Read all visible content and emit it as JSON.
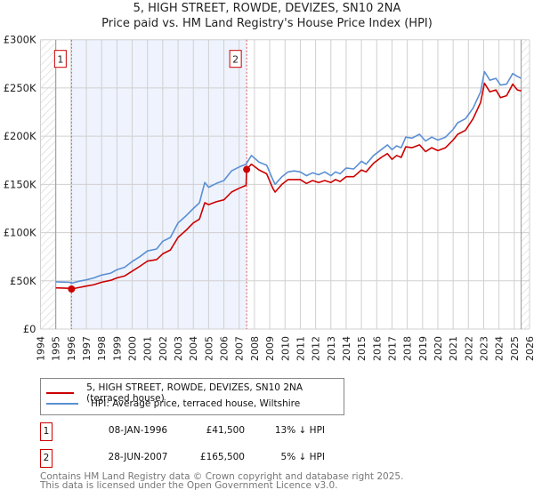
{
  "chart_data": {
    "type": "line",
    "title": "5, HIGH STREET, ROWDE, DEVIZES, SN10 2NA",
    "subtitle": "Price paid vs. HM Land Registry's House Price Index (HPI)",
    "xlim": [
      1994,
      2026
    ],
    "ylim": [
      0,
      300000
    ],
    "x_ticks": [
      "1994",
      "1995",
      "1996",
      "1997",
      "1998",
      "1999",
      "2000",
      "2001",
      "2002",
      "2003",
      "2004",
      "2005",
      "2006",
      "2007",
      "2008",
      "2009",
      "2010",
      "2011",
      "2012",
      "2013",
      "2014",
      "2015",
      "2016",
      "2017",
      "2018",
      "2019",
      "2020",
      "2021",
      "2022",
      "2023",
      "2024",
      "2025",
      "2026"
    ],
    "y_ticks": [
      {
        "v": 0,
        "label": "£0"
      },
      {
        "v": 50000,
        "label": "£50K"
      },
      {
        "v": 100000,
        "label": "£100K"
      },
      {
        "v": 150000,
        "label": "£150K"
      },
      {
        "v": 200000,
        "label": "£200K"
      },
      {
        "v": 250000,
        "label": "£250K"
      },
      {
        "v": 300000,
        "label": "£300K"
      }
    ],
    "grid": true,
    "hatched_before": 1995,
    "hatched_after": 2025.45,
    "legend_placement": "below",
    "series": [
      {
        "name": "5, HIGH STREET, ROWDE, DEVIZES, SN10 2NA (terraced house)",
        "color": "#cc0000",
        "points": [
          [
            1995,
            42700
          ],
          [
            1995.9,
            42200
          ],
          [
            1996.03,
            41500
          ],
          [
            1996.5,
            43000
          ],
          [
            1997,
            44500
          ],
          [
            1997.5,
            46000
          ],
          [
            1998,
            48500
          ],
          [
            1998.6,
            50500
          ],
          [
            1999,
            53000
          ],
          [
            1999.5,
            55000
          ],
          [
            2000,
            60000
          ],
          [
            2000.5,
            65000
          ],
          [
            2001,
            70500
          ],
          [
            2001.6,
            72000
          ],
          [
            2002,
            78000
          ],
          [
            2002.5,
            82000
          ],
          [
            2003,
            95000
          ],
          [
            2003.5,
            102000
          ],
          [
            2004,
            110000
          ],
          [
            2004.4,
            114000
          ],
          [
            2004.75,
            131000
          ],
          [
            2005,
            129000
          ],
          [
            2005.5,
            132000
          ],
          [
            2006,
            134000
          ],
          [
            2006.5,
            142000
          ],
          [
            2007,
            146000
          ],
          [
            2007.45,
            149000
          ],
          [
            2007.49,
            165500
          ],
          [
            2007.8,
            171000
          ],
          [
            2008.3,
            165000
          ],
          [
            2008.8,
            161000
          ],
          [
            2009.2,
            146000
          ],
          [
            2009.35,
            142000
          ],
          [
            2009.8,
            150000
          ],
          [
            2010.2,
            155000
          ],
          [
            2010.6,
            155000
          ],
          [
            2011,
            155000
          ],
          [
            2011.4,
            151000
          ],
          [
            2011.8,
            154000
          ],
          [
            2012.2,
            152000
          ],
          [
            2012.6,
            154000
          ],
          [
            2013,
            152000
          ],
          [
            2013.3,
            155000
          ],
          [
            2013.6,
            153000
          ],
          [
            2014,
            158000
          ],
          [
            2014.5,
            158000
          ],
          [
            2015,
            165000
          ],
          [
            2015.3,
            163000
          ],
          [
            2015.8,
            172000
          ],
          [
            2016.3,
            178000
          ],
          [
            2016.7,
            182000
          ],
          [
            2017,
            176000
          ],
          [
            2017.3,
            180000
          ],
          [
            2017.6,
            178000
          ],
          [
            2017.9,
            189000
          ],
          [
            2018.3,
            188000
          ],
          [
            2018.8,
            191000
          ],
          [
            2019.2,
            184000
          ],
          [
            2019.6,
            188000
          ],
          [
            2020,
            185000
          ],
          [
            2020.5,
            188000
          ],
          [
            2021,
            196000
          ],
          [
            2021.3,
            202000
          ],
          [
            2021.8,
            206000
          ],
          [
            2022.3,
            218000
          ],
          [
            2022.8,
            235000
          ],
          [
            2023.05,
            255000
          ],
          [
            2023.4,
            246000
          ],
          [
            2023.8,
            248000
          ],
          [
            2024.1,
            240000
          ],
          [
            2024.5,
            242000
          ],
          [
            2024.9,
            254000
          ],
          [
            2025.2,
            248000
          ],
          [
            2025.45,
            247000
          ]
        ]
      },
      {
        "name": "HPI: Average price, terraced house, Wiltshire",
        "color": "#5b8fd4",
        "points": [
          [
            1995,
            49000
          ],
          [
            1995.9,
            48500
          ],
          [
            1996.03,
            47500
          ],
          [
            1996.5,
            49500
          ],
          [
            1997,
            51000
          ],
          [
            1997.5,
            53000
          ],
          [
            1998,
            56000
          ],
          [
            1998.6,
            58000
          ],
          [
            1999,
            61500
          ],
          [
            1999.5,
            64000
          ],
          [
            2000,
            70000
          ],
          [
            2000.5,
            75000
          ],
          [
            2001,
            81000
          ],
          [
            2001.6,
            83000
          ],
          [
            2002,
            91000
          ],
          [
            2002.5,
            95000
          ],
          [
            2003,
            110000
          ],
          [
            2003.5,
            117000
          ],
          [
            2004,
            125000
          ],
          [
            2004.4,
            131000
          ],
          [
            2004.75,
            152000
          ],
          [
            2005,
            147000
          ],
          [
            2005.5,
            151000
          ],
          [
            2006,
            154000
          ],
          [
            2006.5,
            164000
          ],
          [
            2007,
            168000
          ],
          [
            2007.45,
            171000
          ],
          [
            2007.8,
            180000
          ],
          [
            2008.3,
            173000
          ],
          [
            2008.8,
            170000
          ],
          [
            2009.2,
            155000
          ],
          [
            2009.35,
            150000
          ],
          [
            2009.8,
            158000
          ],
          [
            2010.2,
            163000
          ],
          [
            2010.6,
            164000
          ],
          [
            2011,
            163000
          ],
          [
            2011.4,
            159000
          ],
          [
            2011.8,
            162000
          ],
          [
            2012.2,
            160000
          ],
          [
            2012.6,
            163000
          ],
          [
            2013,
            159000
          ],
          [
            2013.3,
            163000
          ],
          [
            2013.6,
            161000
          ],
          [
            2014,
            167000
          ],
          [
            2014.5,
            166000
          ],
          [
            2015,
            174000
          ],
          [
            2015.3,
            171000
          ],
          [
            2015.8,
            180000
          ],
          [
            2016.3,
            186000
          ],
          [
            2016.7,
            191000
          ],
          [
            2017,
            186000
          ],
          [
            2017.3,
            190000
          ],
          [
            2017.6,
            188000
          ],
          [
            2017.9,
            199000
          ],
          [
            2018.3,
            198000
          ],
          [
            2018.8,
            202000
          ],
          [
            2019.2,
            195000
          ],
          [
            2019.6,
            199000
          ],
          [
            2020,
            196000
          ],
          [
            2020.5,
            199000
          ],
          [
            2021,
            207000
          ],
          [
            2021.3,
            214000
          ],
          [
            2021.8,
            218000
          ],
          [
            2022.3,
            229000
          ],
          [
            2022.8,
            246000
          ],
          [
            2023.05,
            267000
          ],
          [
            2023.4,
            258000
          ],
          [
            2023.8,
            260000
          ],
          [
            2024.1,
            253000
          ],
          [
            2024.5,
            254000
          ],
          [
            2024.9,
            265000
          ],
          [
            2025.2,
            262000
          ],
          [
            2025.45,
            260000
          ]
        ]
      }
    ],
    "annotations": [
      {
        "label": "1",
        "x": 1996.03,
        "y": 41500
      },
      {
        "label": "2",
        "x": 2007.49,
        "y": 165500
      }
    ],
    "shaded_range": [
      1996.03,
      2007.49
    ]
  },
  "sales": [
    {
      "num": "1",
      "date": "08-JAN-1996",
      "price": "£41,500",
      "hpi": "13% ↓ HPI"
    },
    {
      "num": "2",
      "date": "28-JUN-2007",
      "price": "£165,500",
      "hpi": "5% ↓ HPI"
    }
  ],
  "footer": {
    "line1": "Contains HM Land Registry data © Crown copyright and database right 2025.",
    "line2": "This data is licensed under the Open Government Licence v3.0."
  }
}
